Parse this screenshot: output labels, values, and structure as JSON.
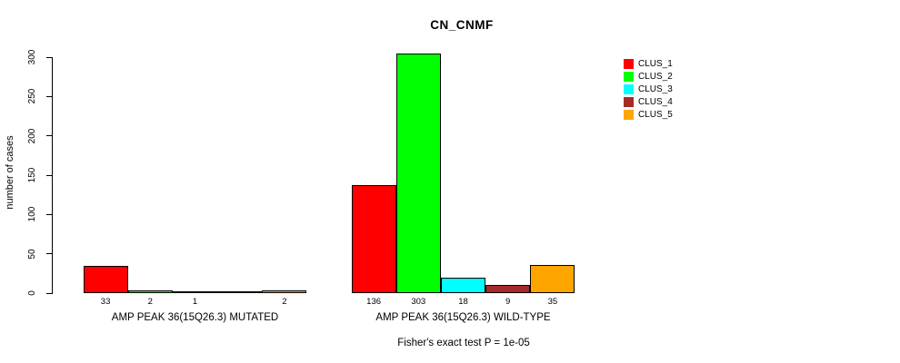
{
  "chart_data": {
    "type": "bar",
    "title": "CN_CNMF",
    "ylabel": "number of cases",
    "ylim": [
      0,
      300
    ],
    "yticks": [
      0,
      50,
      100,
      150,
      200,
      250,
      300
    ],
    "grid": false,
    "legend_position": "right",
    "series": [
      {
        "name": "CLUS_1",
        "color": "#FF0000"
      },
      {
        "name": "CLUS_2",
        "color": "#00FF00"
      },
      {
        "name": "CLUS_3",
        "color": "#00FFFF"
      },
      {
        "name": "CLUS_4",
        "color": "#A52A2A"
      },
      {
        "name": "CLUS_5",
        "color": "#FFA500"
      }
    ],
    "groups": [
      {
        "label": "AMP PEAK 36(15Q26.3) MUTATED",
        "values": [
          33,
          2,
          1,
          0,
          2
        ],
        "value_labels": [
          "33",
          "2",
          "1",
          "",
          "2"
        ]
      },
      {
        "label": "AMP PEAK 36(15Q26.3) WILD-TYPE",
        "values": [
          136,
          303,
          18,
          9,
          35
        ],
        "value_labels": [
          "136",
          "303",
          "18",
          "9",
          "35"
        ]
      }
    ]
  },
  "footer": {
    "text": "Fisher's exact test P = 1e-05"
  }
}
